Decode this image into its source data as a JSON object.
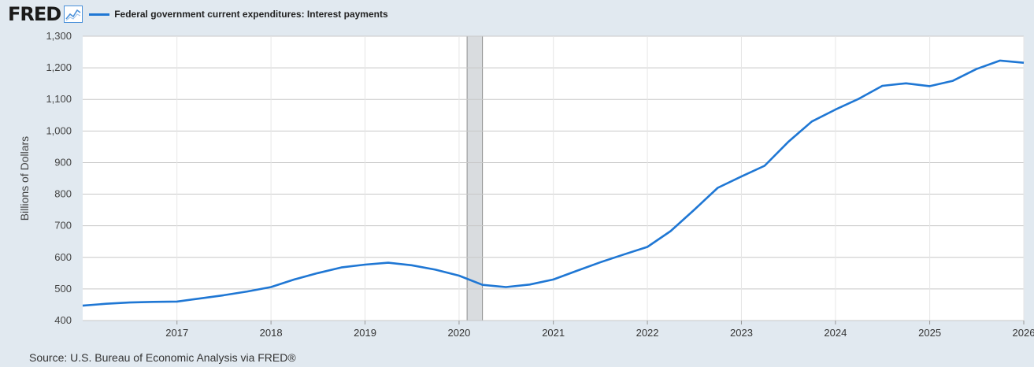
{
  "header": {
    "logo_text": "FRED",
    "logo_icon": "line-chart-icon"
  },
  "footer": {
    "source": "Source: U.S. Bureau of Economic Analysis via FRED®"
  },
  "colors": {
    "series": "#1f77d4",
    "recession": "#d9dcdf",
    "grid": "#c8c8c8",
    "background": "#e1e9f0"
  },
  "chart_data": {
    "type": "line",
    "ylabel": "Billions of Dollars",
    "ylim": [
      400,
      1300
    ],
    "yticks": [
      400,
      500,
      600,
      700,
      800,
      900,
      "1,000",
      "1,100",
      "1,200",
      "1,300"
    ],
    "ytick_values": [
      400,
      500,
      600,
      700,
      800,
      900,
      1000,
      1100,
      1200,
      1300
    ],
    "xlim": [
      "2016-01-01",
      "2026-01-01"
    ],
    "xticks": [
      "2017",
      "2018",
      "2019",
      "2020",
      "2021",
      "2022",
      "2023",
      "2024",
      "2025",
      "2026"
    ],
    "grid": true,
    "recession": {
      "start": "2020-02-01",
      "end": "2020-04-01"
    },
    "series": [
      {
        "name": "Federal government current expenditures: Interest payments",
        "x": [
          "2016-01-01",
          "2016-04-01",
          "2016-07-01",
          "2016-10-01",
          "2017-01-01",
          "2017-04-01",
          "2017-07-01",
          "2017-10-01",
          "2018-01-01",
          "2018-04-01",
          "2018-07-01",
          "2018-10-01",
          "2019-01-01",
          "2019-04-01",
          "2019-07-01",
          "2019-10-01",
          "2020-01-01",
          "2020-04-01",
          "2020-07-01",
          "2020-10-01",
          "2021-01-01",
          "2021-04-01",
          "2021-07-01",
          "2021-10-01",
          "2022-01-01",
          "2022-04-01",
          "2022-07-01",
          "2022-10-01",
          "2023-01-01",
          "2023-04-01",
          "2023-07-01",
          "2023-10-01",
          "2024-01-01",
          "2024-04-01",
          "2024-07-01",
          "2024-10-01",
          "2025-01-01",
          "2025-04-01",
          "2025-07-01",
          "2025-10-01",
          "2026-01-01"
        ],
        "values": [
          447,
          453,
          457,
          459,
          460,
          470,
          480,
          492,
          506,
          530,
          550,
          568,
          577,
          583,
          575,
          561,
          542,
          513,
          506,
          514,
          530,
          557,
          584,
          609,
          633,
          683,
          750,
          820,
          856,
          890,
          965,
          1030,
          1068,
          1102,
          1143,
          1151,
          1142,
          1159,
          1196,
          1223,
          1216
        ]
      }
    ]
  }
}
